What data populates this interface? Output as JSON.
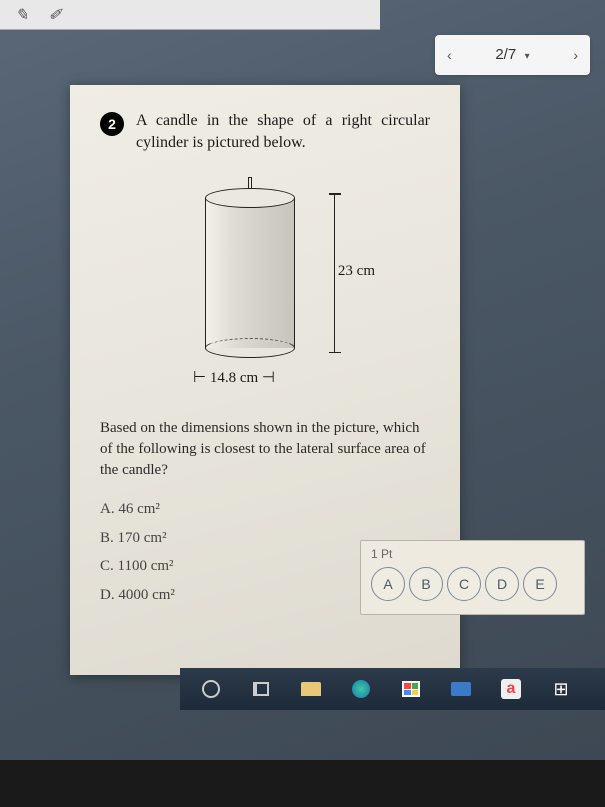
{
  "pager": {
    "prev": "‹",
    "current": "2/7",
    "dropdown": "▾",
    "next": "›"
  },
  "question": {
    "number": "2",
    "text": "A candle in the shape of a right circular cylinder is pictured below.",
    "height_label": "23 cm",
    "width_label": "⊢ 14.8 cm ⊣",
    "subtext": "Based on the dimensions shown in the picture, which of the following is closest to the lateral surface area of the candle?",
    "choices": {
      "a": "A.  46 cm²",
      "b": "B.  170 cm²",
      "c": "C.  1100 cm²",
      "d": "D.  4000 cm²"
    }
  },
  "answer_panel": {
    "points": "1 Pt",
    "options": [
      "A",
      "B",
      "C",
      "D",
      "E"
    ]
  },
  "taskbar": {
    "amazon_letter": "a"
  }
}
